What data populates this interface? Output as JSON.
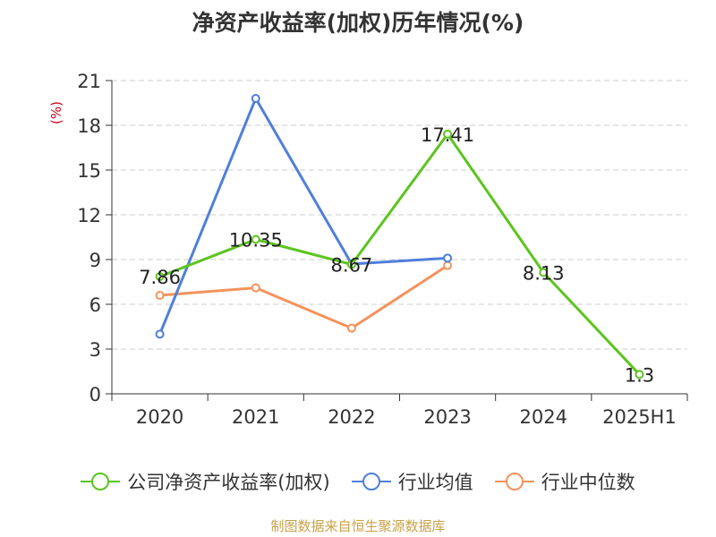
{
  "chart_data": {
    "type": "line",
    "title": "净资产收益率(加权)历年情况(%)",
    "ylabel": "(%)",
    "xlabel": "",
    "categories": [
      "2020",
      "2021",
      "2022",
      "2023",
      "2024",
      "2025H1"
    ],
    "ylim": [
      0,
      21
    ],
    "yticks": [
      0,
      3,
      6,
      9,
      12,
      15,
      18,
      21
    ],
    "grid": true,
    "legend_position": "bottom",
    "series": [
      {
        "name": "公司净资产收益率(加权)",
        "color": "#5cc41f",
        "values": [
          7.86,
          10.35,
          8.67,
          17.41,
          8.13,
          1.3
        ],
        "labels": [
          "7.86",
          "10.35",
          "8.67",
          "17.41",
          "8.13",
          "1.3"
        ]
      },
      {
        "name": "行业均值",
        "color": "#4f7fdb",
        "values": [
          4.0,
          19.8,
          8.7,
          9.1,
          null,
          null
        ]
      },
      {
        "name": "行业中位数",
        "color": "#f4925c",
        "values": [
          6.6,
          7.1,
          4.4,
          8.6,
          null,
          null
        ]
      }
    ]
  },
  "source_note": "制图数据来自恒生聚源数据库"
}
